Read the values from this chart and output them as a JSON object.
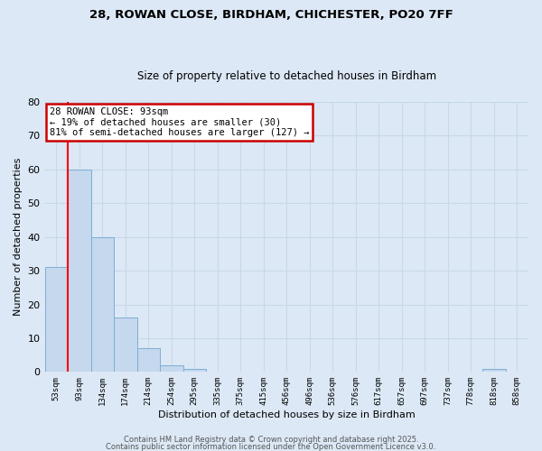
{
  "title_line1": "28, ROWAN CLOSE, BIRDHAM, CHICHESTER, PO20 7FF",
  "title_line2": "Size of property relative to detached houses in Birdham",
  "xlabel": "Distribution of detached houses by size in Birdham",
  "ylabel": "Number of detached properties",
  "categories": [
    "53sqm",
    "93sqm",
    "134sqm",
    "174sqm",
    "214sqm",
    "254sqm",
    "295sqm",
    "335sqm",
    "375sqm",
    "415sqm",
    "456sqm",
    "496sqm",
    "536sqm",
    "576sqm",
    "617sqm",
    "657sqm",
    "697sqm",
    "737sqm",
    "778sqm",
    "818sqm",
    "858sqm"
  ],
  "values": [
    31,
    60,
    40,
    16,
    7,
    2,
    1,
    0,
    0,
    0,
    0,
    0,
    0,
    0,
    0,
    0,
    0,
    0,
    0,
    1,
    0
  ],
  "bar_color": "#c5d8ee",
  "bar_edge_color": "#7bafd4",
  "bar_width": 1.0,
  "red_line_index": 1,
  "annotation_text": "28 ROWAN CLOSE: 93sqm\n← 19% of detached houses are smaller (30)\n81% of semi-detached houses are larger (127) →",
  "annotation_box_facecolor": "#ffffff",
  "annotation_box_edgecolor": "#cc0000",
  "grid_color": "#c8d8e8",
  "plot_bg_color": "#dce8f5",
  "fig_bg_color": "#dce8f5",
  "ylim": [
    0,
    80
  ],
  "yticks": [
    0,
    10,
    20,
    30,
    40,
    50,
    60,
    70,
    80
  ],
  "footer_line1": "Contains HM Land Registry data © Crown copyright and database right 2025.",
  "footer_line2": "Contains public sector information licensed under the Open Government Licence v3.0."
}
